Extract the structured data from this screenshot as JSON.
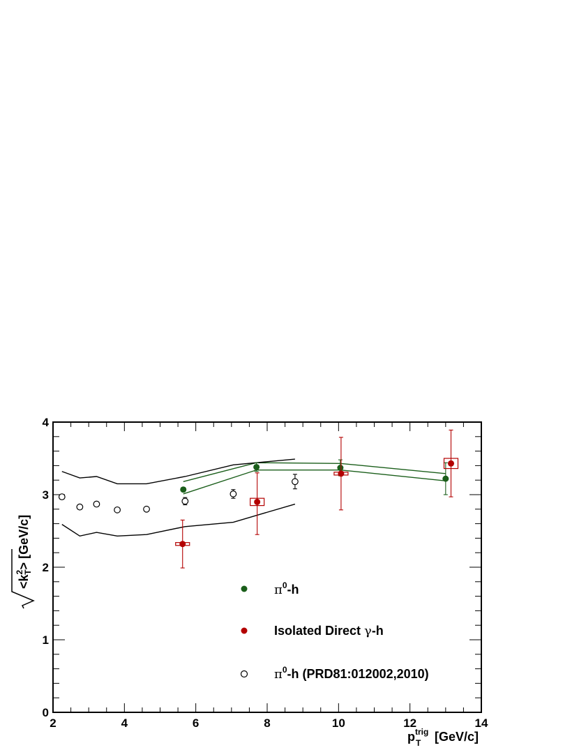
{
  "chart_data": {
    "type": "scatter",
    "title": "",
    "xlabel": {
      "base": "p",
      "sub": "T",
      "sup": "trig",
      "unit": "[GeV/c]"
    },
    "ylabel": {
      "open": "<k",
      "sup": "2",
      "sub": "T",
      "close": "> [GeV/c]"
    },
    "xlim": [
      2,
      14
    ],
    "ylim": [
      0,
      4
    ],
    "x_major_ticks": [
      2,
      4,
      6,
      8,
      10,
      12,
      14
    ],
    "y_major_ticks": [
      0,
      1,
      2,
      3,
      4
    ],
    "x_tick_labels": [
      "2",
      "4",
      "6",
      "8",
      "10",
      "12",
      "14"
    ],
    "y_tick_labels": [
      "0",
      "1",
      "2",
      "3",
      "4"
    ],
    "grid": false,
    "legend_position": "lower-center",
    "series": [
      {
        "name": "π⁰-h",
        "legend_parts": {
          "a": "π",
          "sup": "0",
          "b": "-h"
        },
        "marker": "filled-circle",
        "color": "#1a5e1a",
        "points": [
          {
            "x": 5.65,
            "y": 3.07,
            "err": 0.03
          },
          {
            "x": 7.7,
            "y": 3.38,
            "err": 0.06
          },
          {
            "x": 10.05,
            "y": 3.37,
            "err": 0.11
          },
          {
            "x": 13.0,
            "y": 3.22,
            "err": 0.22
          }
        ],
        "band_upper": [
          [
            5.65,
            3.18
          ],
          [
            7.7,
            3.44
          ],
          [
            10.05,
            3.43
          ],
          [
            13.0,
            3.29
          ]
        ],
        "band_lower": [
          [
            5.65,
            3.01
          ],
          [
            7.7,
            3.34
          ],
          [
            10.05,
            3.34
          ],
          [
            13.0,
            3.19
          ]
        ]
      },
      {
        "name": "Isolated Direct γ-h",
        "legend_parts": {
          "a": "Isolated Direct ",
          "greek": "γ",
          "b": "-h"
        },
        "marker": "filled-circle",
        "color": "#b30000",
        "points": [
          {
            "x": 5.63,
            "y": 2.32,
            "err_up": 0.33,
            "err_down": 0.33,
            "sys": 0.02
          },
          {
            "x": 7.72,
            "y": 2.9,
            "err_up": 0.4,
            "err_down": 0.45,
            "sys": 0.05
          },
          {
            "x": 10.07,
            "y": 3.29,
            "err_up": 0.5,
            "err_down": 0.5,
            "sys": 0.02
          },
          {
            "x": 13.15,
            "y": 3.43,
            "err_up": 0.46,
            "err_down": 0.46,
            "sys": 0.07
          }
        ]
      },
      {
        "name": "π⁰-h (PRD81:012002,2010)",
        "legend_parts": {
          "a": "π",
          "sup": "0",
          "b": "-h (PRD81:012002,2010)"
        },
        "marker": "open-circle",
        "color": "#000000",
        "points": [
          {
            "x": 2.25,
            "y": 2.97,
            "err": 0.03
          },
          {
            "x": 2.75,
            "y": 2.83,
            "err": 0.03
          },
          {
            "x": 3.22,
            "y": 2.87,
            "err": 0.03
          },
          {
            "x": 3.8,
            "y": 2.79,
            "err": 0.03
          },
          {
            "x": 4.62,
            "y": 2.8,
            "err": 0.03
          },
          {
            "x": 5.7,
            "y": 2.91,
            "err": 0.05
          },
          {
            "x": 7.05,
            "y": 3.01,
            "err": 0.06
          },
          {
            "x": 8.78,
            "y": 3.18,
            "err": 0.1
          }
        ],
        "band_upper": [
          [
            2.25,
            3.32
          ],
          [
            2.75,
            3.23
          ],
          [
            3.22,
            3.25
          ],
          [
            3.8,
            3.15
          ],
          [
            4.62,
            3.15
          ],
          [
            5.7,
            3.25
          ],
          [
            7.05,
            3.41
          ],
          [
            8.78,
            3.49
          ]
        ],
        "band_lower": [
          [
            2.25,
            2.59
          ],
          [
            2.75,
            2.43
          ],
          [
            3.22,
            2.48
          ],
          [
            3.8,
            2.43
          ],
          [
            4.62,
            2.45
          ],
          [
            5.7,
            2.56
          ],
          [
            7.05,
            2.62
          ],
          [
            8.78,
            2.87
          ]
        ]
      }
    ]
  }
}
